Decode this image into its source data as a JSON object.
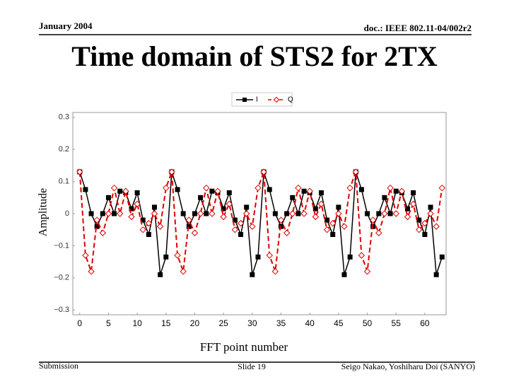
{
  "header": {
    "date": "January 2004",
    "doc": "doc.: IEEE 802.11-04/002r2"
  },
  "footer": {
    "left": "Submission",
    "center": "Slide 19",
    "right": "Seigo Nakao, Yoshiharu Doi (SANYO)"
  },
  "chart_data": {
    "type": "line",
    "title": "Time domain of STS2 for 2TX",
    "x_label": "FFT point number",
    "y_label": "Amplitude",
    "x": [
      0,
      1,
      2,
      3,
      4,
      5,
      6,
      7,
      8,
      9,
      10,
      11,
      12,
      13,
      14,
      15,
      16,
      17,
      18,
      19,
      20,
      21,
      22,
      23,
      24,
      25,
      26,
      27,
      28,
      29,
      30,
      31,
      32,
      33,
      34,
      35,
      36,
      37,
      38,
      39,
      40,
      41,
      42,
      43,
      44,
      45,
      46,
      47,
      48,
      49,
      50,
      51,
      52,
      53,
      54,
      55,
      56,
      57,
      58,
      59,
      60,
      61,
      62,
      63
    ],
    "series": [
      {
        "name": "I",
        "color": "#000000",
        "linestyle": "solid",
        "marker": "square",
        "values": [
          0.13,
          0.075,
          0,
          -0.04,
          0,
          0.05,
          0,
          0.07,
          0.065,
          0.015,
          0.065,
          -0.02,
          -0.065,
          0.02,
          -0.19,
          -0.135,
          0.13,
          0.075,
          0,
          -0.04,
          0,
          0.05,
          0,
          0.07,
          0.065,
          0.015,
          0.065,
          -0.02,
          -0.065,
          0.02,
          -0.19,
          -0.135,
          0.13,
          0.075,
          0,
          -0.04,
          0,
          0.05,
          0,
          0.07,
          0.065,
          0.015,
          0.065,
          -0.02,
          -0.065,
          0.02,
          -0.19,
          -0.135,
          0.13,
          0.075,
          0,
          -0.04,
          0,
          0.05,
          0,
          0.07,
          0.065,
          0.015,
          0.065,
          -0.02,
          -0.065,
          0.02,
          -0.19,
          -0.135
        ]
      },
      {
        "name": "Q",
        "color": "#e00000",
        "linestyle": "dashed",
        "marker": "diamond",
        "values": [
          0.13,
          -0.13,
          -0.18,
          -0.02,
          -0.06,
          0,
          0.08,
          0,
          0.07,
          -0.01,
          0.03,
          -0.05,
          -0.03,
          0,
          -0.04,
          0.08,
          0.13,
          -0.13,
          -0.18,
          -0.02,
          -0.06,
          0,
          0.08,
          0,
          0.07,
          -0.01,
          0.03,
          -0.05,
          -0.03,
          0,
          -0.04,
          0.08,
          0.13,
          -0.13,
          -0.18,
          -0.02,
          -0.06,
          0,
          0.08,
          0,
          0.07,
          -0.01,
          0.03,
          -0.05,
          -0.03,
          0,
          -0.04,
          0.08,
          0.13,
          -0.13,
          -0.18,
          -0.02,
          -0.06,
          0,
          0.08,
          0,
          0.07,
          -0.01,
          0.03,
          -0.05,
          -0.03,
          0,
          -0.04,
          0.08
        ]
      }
    ],
    "xlim": [
      -1.2,
      63.7
    ],
    "xticks": [
      0,
      5,
      10,
      15,
      20,
      25,
      30,
      35,
      40,
      45,
      50,
      55,
      60
    ],
    "ylim": [
      -0.315,
      0.315
    ],
    "yticks": [
      0.3,
      0.2,
      0.1,
      0,
      {
        "value": -0.1,
        "label": "−0.1"
      },
      {
        "value": -0.2,
        "label": "−0.2"
      },
      {
        "value": -0.3,
        "label": "−0.3"
      }
    ],
    "legend": "top"
  }
}
